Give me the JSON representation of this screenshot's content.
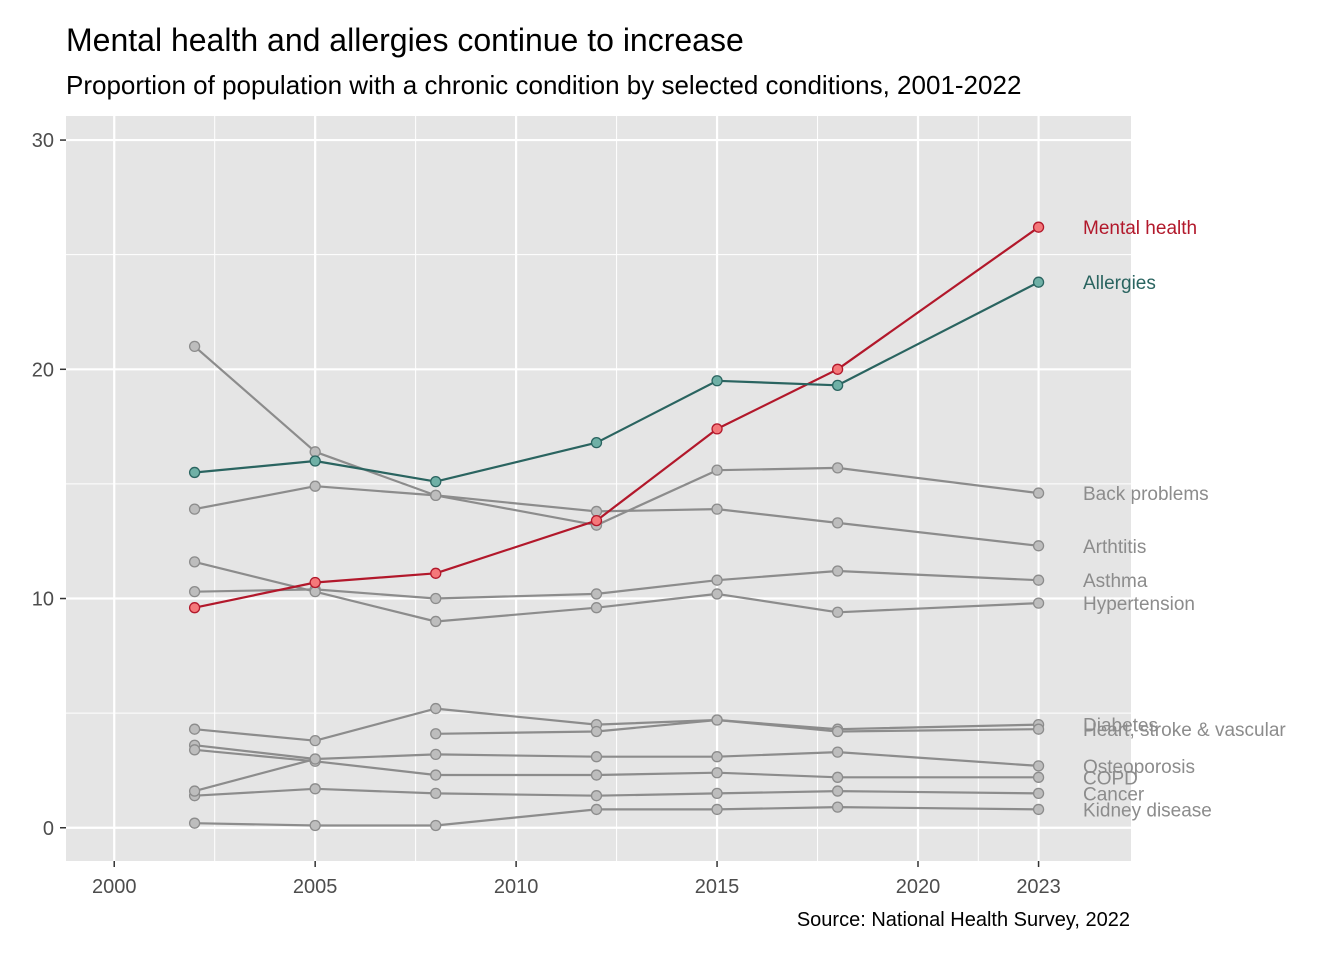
{
  "title": "Mental health and allergies continue to increase",
  "subtitle": "Proportion of population with a chronic condition by selected conditions, 2001-2022",
  "caption": "Source: National Health Survey, 2022",
  "colors": {
    "panel": "#e5e5e5",
    "grid": "#ffffff",
    "gray_line": "#8c8c8c",
    "gray_point": "#bdbdbd",
    "mental_line": "#b2182b",
    "mental_point": "#f4787a",
    "allergy_line": "#2a6460",
    "allergy_point": "#6fb0a6"
  },
  "chart_data": {
    "type": "line",
    "title": "Mental health and allergies continue to increase",
    "subtitle": "Proportion of population with a chronic condition by selected conditions, 2001-2022",
    "xlabel": "",
    "ylabel": "",
    "xlim": [
      1998.8,
      2025.3
    ],
    "ylim": [
      -1.45,
      31.05
    ],
    "x_ticks": [
      2000,
      2005,
      2010,
      2015,
      2020,
      2023
    ],
    "y_ticks": [
      0,
      10,
      20,
      30
    ],
    "grid": true,
    "series": [
      {
        "name": "Mental health",
        "highlight": "mental",
        "points": [
          [
            2002,
            9.6
          ],
          [
            2005,
            10.7
          ],
          [
            2008,
            11.1
          ],
          [
            2012,
            13.4
          ],
          [
            2015,
            17.4
          ],
          [
            2018,
            20.0
          ],
          [
            2023,
            26.2
          ]
        ]
      },
      {
        "name": "Allergies",
        "highlight": "allergy",
        "points": [
          [
            2002,
            15.5
          ],
          [
            2005,
            16.0
          ],
          [
            2008,
            15.1
          ],
          [
            2012,
            16.8
          ],
          [
            2015,
            19.5
          ],
          [
            2018,
            19.3
          ],
          [
            2023,
            23.8
          ]
        ]
      },
      {
        "name": "Back problems",
        "points": [
          [
            2002,
            21.0
          ],
          [
            2005,
            16.4
          ],
          [
            2008,
            14.5
          ],
          [
            2012,
            13.2
          ],
          [
            2015,
            15.6
          ],
          [
            2018,
            15.7
          ],
          [
            2023,
            14.6
          ]
        ]
      },
      {
        "name": "Arthtitis",
        "points": [
          [
            2002,
            13.9
          ],
          [
            2005,
            14.9
          ],
          [
            2008,
            14.5
          ],
          [
            2012,
            13.8
          ],
          [
            2015,
            13.9
          ],
          [
            2018,
            13.3
          ],
          [
            2023,
            12.3
          ]
        ]
      },
      {
        "name": "Asthma",
        "points": [
          [
            2002,
            10.3
          ],
          [
            2005,
            10.4
          ],
          [
            2008,
            10.0
          ],
          [
            2012,
            10.2
          ],
          [
            2015,
            10.8
          ],
          [
            2018,
            11.2
          ],
          [
            2023,
            10.8
          ]
        ]
      },
      {
        "name": "Hypertension",
        "points": [
          [
            2002,
            11.6
          ],
          [
            2005,
            10.3
          ],
          [
            2008,
            9.0
          ],
          [
            2012,
            9.6
          ],
          [
            2015,
            10.2
          ],
          [
            2018,
            9.4
          ],
          [
            2023,
            9.8
          ]
        ]
      },
      {
        "name": "Diabetes",
        "points": [
          [
            2002,
            4.3
          ],
          [
            2005,
            3.8
          ],
          [
            2008,
            5.2
          ],
          [
            2012,
            4.5
          ],
          [
            2015,
            4.7
          ],
          [
            2018,
            4.3
          ],
          [
            2023,
            4.5
          ]
        ]
      },
      {
        "name": "Heart, stroke & vascular",
        "points": [
          [
            2008,
            4.1
          ],
          [
            2012,
            4.2
          ],
          [
            2015,
            4.7
          ],
          [
            2018,
            4.2
          ],
          [
            2023,
            4.3
          ]
        ]
      },
      {
        "name": "Osteoporosis",
        "points": [
          [
            2002,
            3.6
          ],
          [
            2005,
            3.0
          ],
          [
            2008,
            3.2
          ],
          [
            2012,
            3.1
          ],
          [
            2015,
            3.1
          ],
          [
            2018,
            3.3
          ],
          [
            2023,
            2.7
          ]
        ]
      },
      {
        "name": "COPD",
        "points": [
          [
            2002,
            3.4
          ],
          [
            2005,
            2.9
          ],
          [
            2008,
            2.3
          ],
          [
            2012,
            2.3
          ],
          [
            2015,
            2.4
          ],
          [
            2018,
            2.2
          ],
          [
            2023,
            2.2
          ]
        ]
      },
      {
        "name": "Cancer",
        "points": [
          [
            2002,
            1.4
          ],
          [
            2005,
            1.7
          ],
          [
            2008,
            1.5
          ],
          [
            2012,
            1.4
          ],
          [
            2015,
            1.5
          ],
          [
            2018,
            1.6
          ],
          [
            2023,
            1.5
          ]
        ]
      },
      {
        "name": "Kidney disease",
        "points": [
          [
            2002,
            0.2
          ],
          [
            2005,
            0.1
          ],
          [
            2008,
            0.1
          ],
          [
            2012,
            0.8
          ],
          [
            2015,
            0.8
          ],
          [
            2018,
            0.9
          ],
          [
            2023,
            0.8
          ]
        ]
      },
      {
        "name": "",
        "points": [
          [
            2002,
            1.6
          ],
          [
            2005,
            3.0
          ]
        ]
      }
    ]
  }
}
